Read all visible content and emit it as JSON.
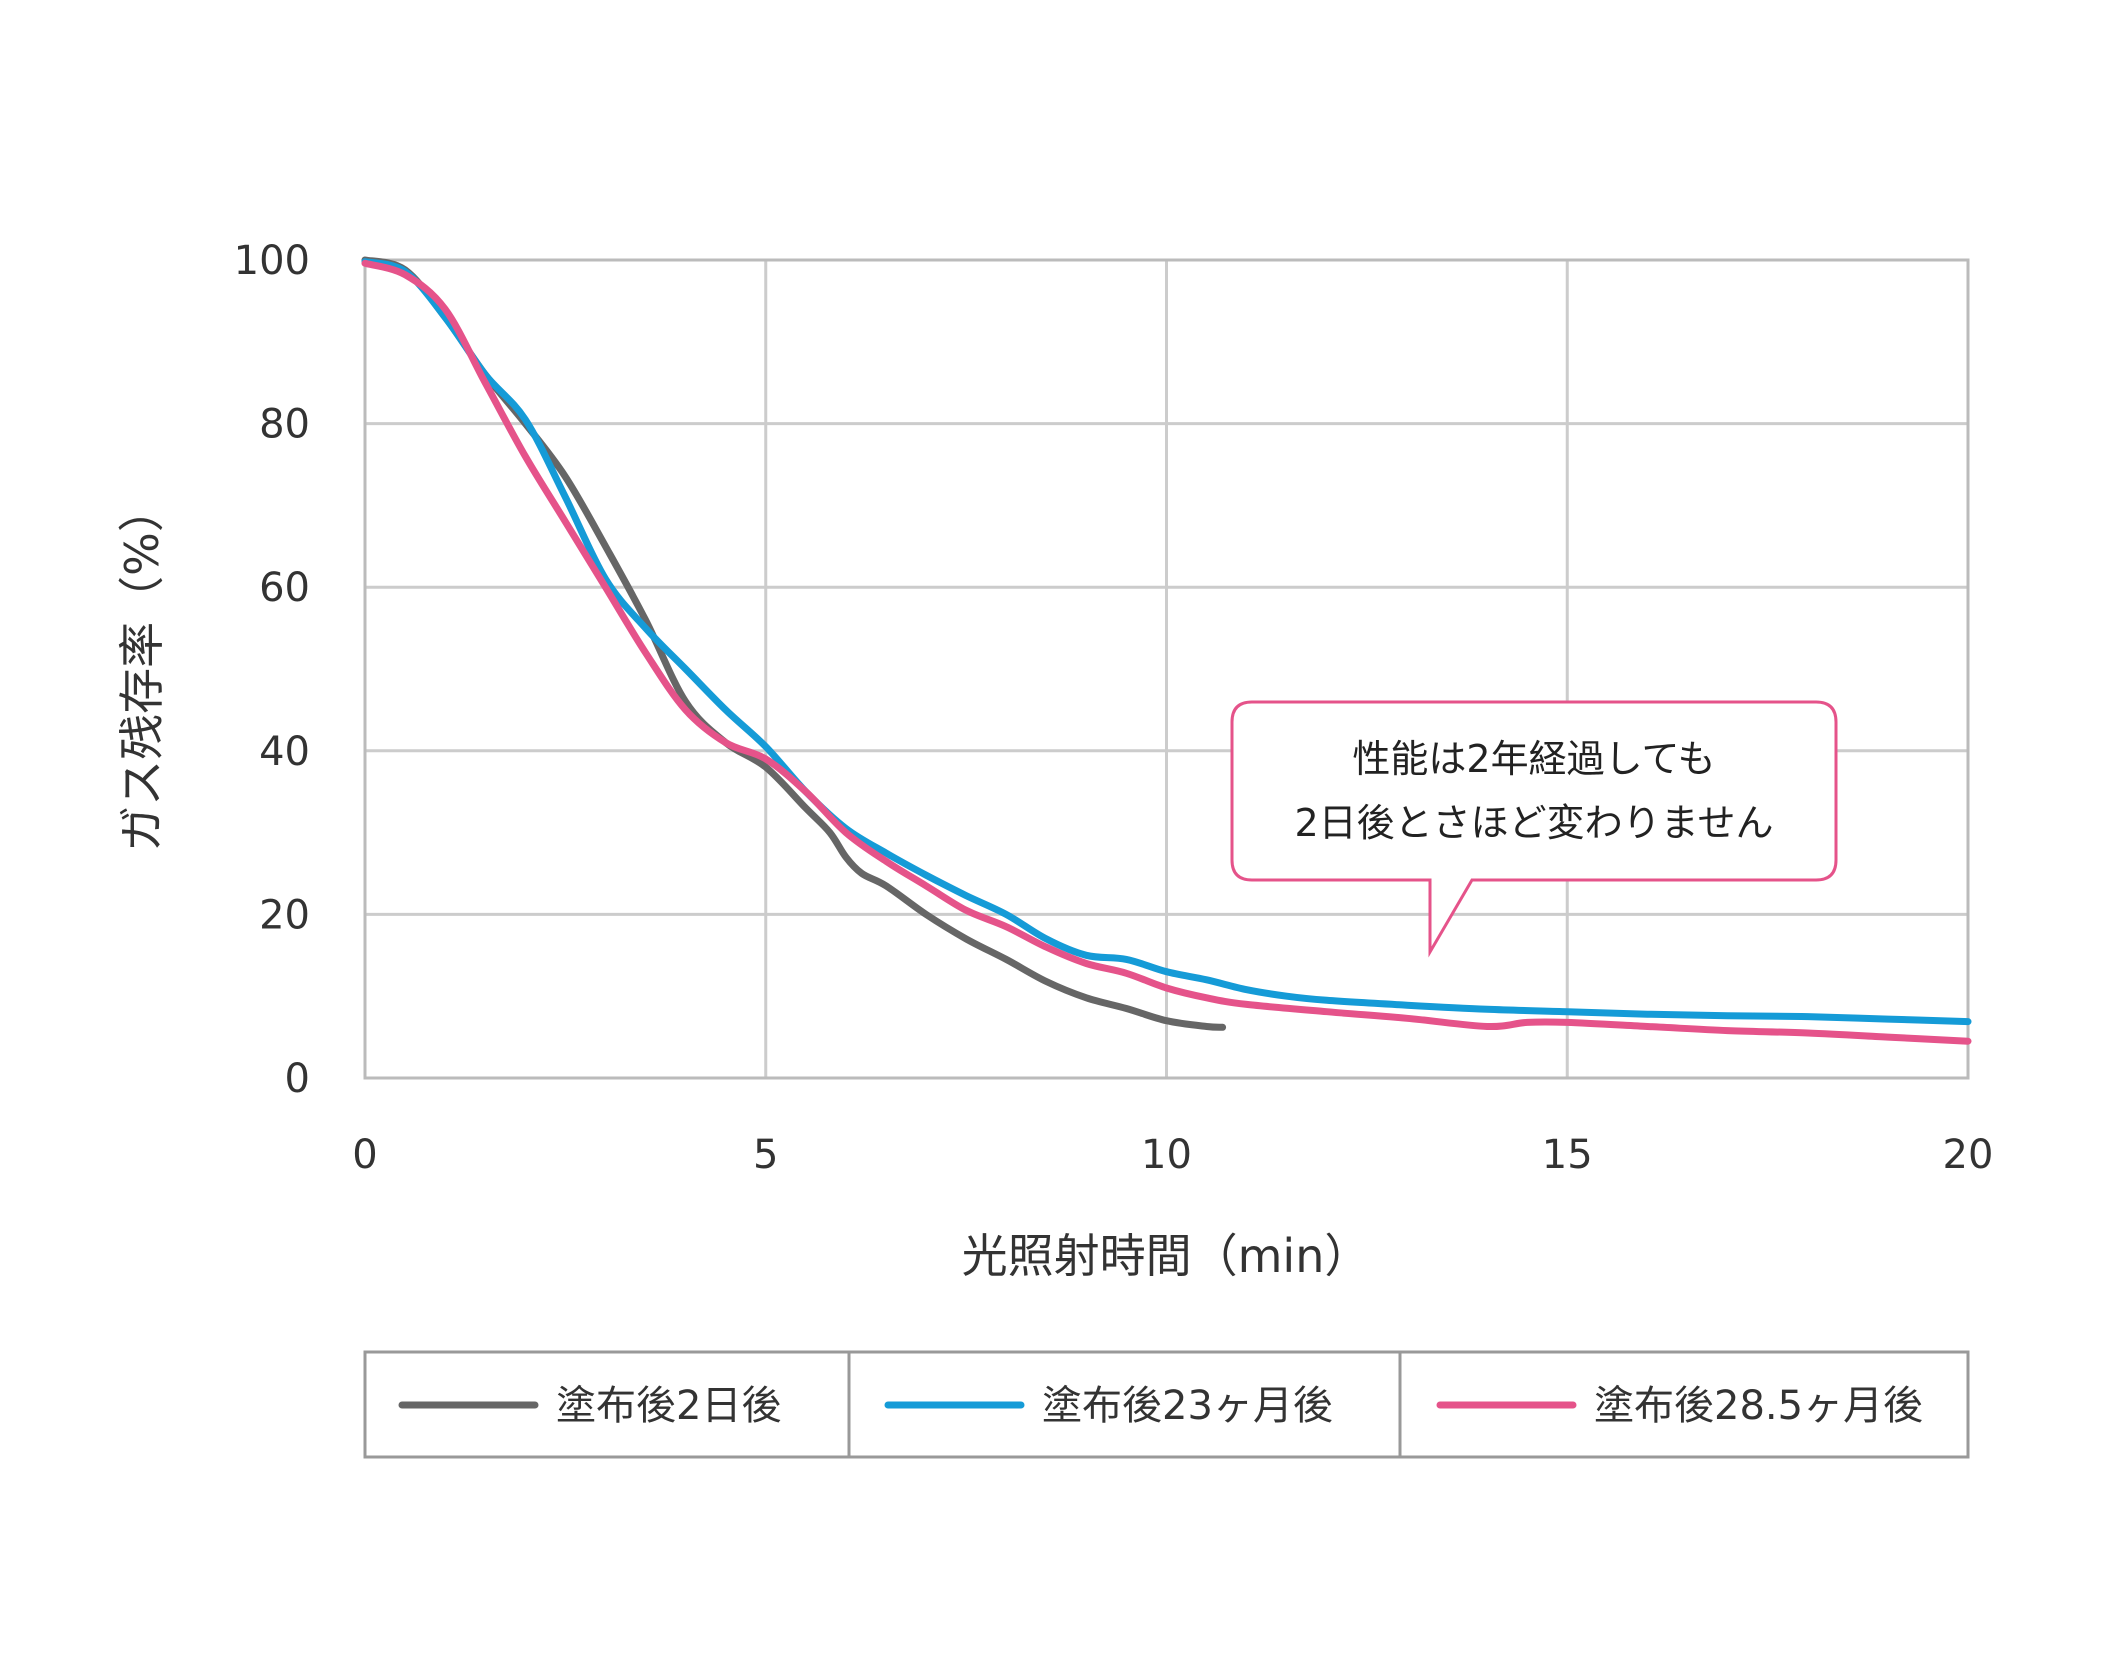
{
  "chart_data": {
    "type": "line",
    "xlabel": "光照射時間（min）",
    "ylabel": "ガス残存率（%）",
    "xlim": [
      0,
      20
    ],
    "ylim": [
      0,
      100
    ],
    "xticks": [
      0,
      5,
      10,
      15,
      20
    ],
    "yticks": [
      0,
      20,
      40,
      60,
      80,
      100
    ],
    "grid": true,
    "legend_position": "bottom",
    "series": [
      {
        "name": "塗布後2日後",
        "color": "#666666",
        "points": [
          [
            0,
            100
          ],
          [
            0.5,
            98.8
          ],
          [
            1,
            93
          ],
          [
            1.5,
            86
          ],
          [
            2,
            80
          ],
          [
            2.5,
            73.5
          ],
          [
            3,
            65
          ],
          [
            3.5,
            56
          ],
          [
            4,
            46
          ],
          [
            4.5,
            41
          ],
          [
            5,
            38
          ],
          [
            5.5,
            33
          ],
          [
            5.8,
            30
          ],
          [
            6,
            27
          ],
          [
            6.2,
            25
          ],
          [
            6.5,
            23.5
          ],
          [
            7,
            20
          ],
          [
            7.5,
            17
          ],
          [
            8,
            14.5
          ],
          [
            8.5,
            11.8
          ],
          [
            9,
            9.8
          ],
          [
            9.5,
            8.5
          ],
          [
            10,
            7
          ],
          [
            10.5,
            6.3
          ],
          [
            10.7,
            6.2
          ]
        ]
      },
      {
        "name": "塗布後23ヶ月後",
        "color": "#159BD7",
        "points": [
          [
            0,
            99.8
          ],
          [
            0.5,
            98.6
          ],
          [
            1,
            93
          ],
          [
            1.5,
            86
          ],
          [
            2,
            80.5
          ],
          [
            2.5,
            71
          ],
          [
            3,
            61
          ],
          [
            3.5,
            55
          ],
          [
            4,
            50
          ],
          [
            4.5,
            45
          ],
          [
            5,
            40.5
          ],
          [
            5.5,
            35
          ],
          [
            6,
            30.5
          ],
          [
            6.5,
            27.5
          ],
          [
            7,
            24.8
          ],
          [
            7.5,
            22.3
          ],
          [
            8,
            20
          ],
          [
            8.5,
            17
          ],
          [
            9,
            15
          ],
          [
            9.5,
            14.5
          ],
          [
            10,
            13
          ],
          [
            10.5,
            12
          ],
          [
            11,
            10.8
          ],
          [
            11.5,
            10
          ],
          [
            12,
            9.5
          ],
          [
            13,
            8.9
          ],
          [
            14,
            8.4
          ],
          [
            15,
            8.1
          ],
          [
            16,
            7.8
          ],
          [
            17,
            7.6
          ],
          [
            18,
            7.5
          ],
          [
            19,
            7.2
          ],
          [
            20,
            6.9
          ]
        ]
      },
      {
        "name": "塗布後28.5ヶ月後",
        "color": "#E5538A",
        "points": [
          [
            0,
            99.6
          ],
          [
            0.5,
            98.2
          ],
          [
            1,
            94
          ],
          [
            1.5,
            85
          ],
          [
            2,
            76
          ],
          [
            2.5,
            68
          ],
          [
            3,
            60
          ],
          [
            3.5,
            52
          ],
          [
            4,
            45
          ],
          [
            4.5,
            41
          ],
          [
            5,
            39
          ],
          [
            5.5,
            35
          ],
          [
            6,
            30
          ],
          [
            6.5,
            26.5
          ],
          [
            7,
            23.5
          ],
          [
            7.5,
            20.5
          ],
          [
            8,
            18.5
          ],
          [
            8.5,
            16
          ],
          [
            9,
            14
          ],
          [
            9.5,
            12.8
          ],
          [
            10,
            11
          ],
          [
            10.5,
            9.8
          ],
          [
            11,
            9
          ],
          [
            12,
            8.1
          ],
          [
            13,
            7.3
          ],
          [
            14,
            6.3
          ],
          [
            14.5,
            6.8
          ],
          [
            15,
            6.8
          ],
          [
            16,
            6.3
          ],
          [
            17,
            5.8
          ],
          [
            18,
            5.5
          ],
          [
            19,
            5
          ],
          [
            20,
            4.5
          ]
        ]
      }
    ],
    "annotation": {
      "line1": "性能は2年経過しても",
      "line2": "2日後とさほど変わりません",
      "color": "#E5538A"
    }
  }
}
